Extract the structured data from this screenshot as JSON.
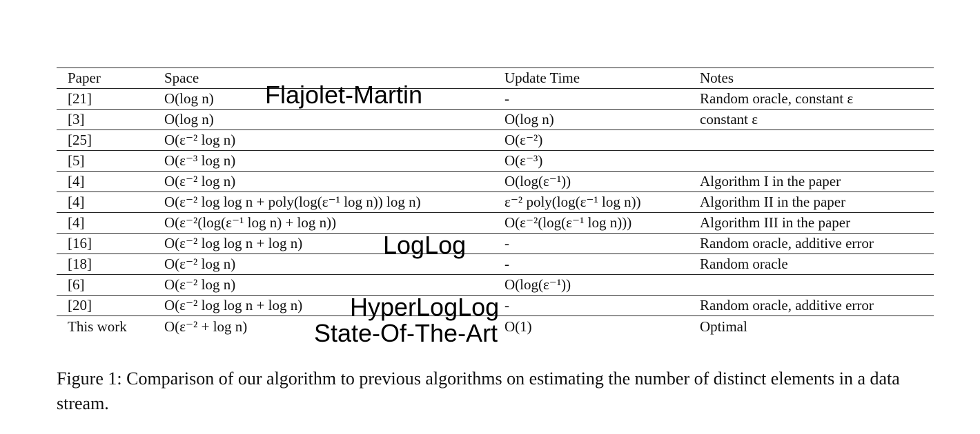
{
  "table": {
    "headers": [
      "Paper",
      "Space",
      "Update Time",
      "Notes"
    ],
    "rows": [
      {
        "paper": "[21]",
        "space": "O(log n)",
        "update": "-",
        "notes": "Random oracle, constant ε"
      },
      {
        "paper": "[3]",
        "space": "O(log n)",
        "update": "O(log n)",
        "notes": "constant ε"
      },
      {
        "paper": "[25]",
        "space": "O(ε⁻² log n)",
        "update": "O(ε⁻²)",
        "notes": ""
      },
      {
        "paper": "[5]",
        "space": "O(ε⁻³ log n)",
        "update": "O(ε⁻³)",
        "notes": ""
      },
      {
        "paper": "[4]",
        "space": "O(ε⁻² log n)",
        "update": "O(log(ε⁻¹))",
        "notes": "Algorithm I in the paper"
      },
      {
        "paper": "[4]",
        "space": "O(ε⁻² log log n + poly(log(ε⁻¹ log n)) log n)",
        "update": "ε⁻² poly(log(ε⁻¹ log n))",
        "notes": "Algorithm II in the paper"
      },
      {
        "paper": "[4]",
        "space": "O(ε⁻²(log(ε⁻¹ log n) + log n))",
        "update": "O(ε⁻²(log(ε⁻¹ log n)))",
        "notes": "Algorithm III in the paper"
      },
      {
        "paper": "[16]",
        "space": "O(ε⁻² log log n + log n)",
        "update": "-",
        "notes": "Random oracle, additive error"
      },
      {
        "paper": "[18]",
        "space": "O(ε⁻² log n)",
        "update": "-",
        "notes": "Random oracle"
      },
      {
        "paper": "[6]",
        "space": "O(ε⁻² log n)",
        "update": "O(log(ε⁻¹))",
        "notes": ""
      },
      {
        "paper": "[20]",
        "space": "O(ε⁻² log log n + log n)",
        "update": "-",
        "notes": "Random oracle, additive error"
      },
      {
        "paper": "This work",
        "space": "O(ε⁻² + log n)",
        "update": "O(1)",
        "notes": "Optimal"
      }
    ]
  },
  "overlays": {
    "flajolet_martin": "Flajolet-Martin",
    "loglog": "LogLog",
    "hyperloglog": "HyperLogLog",
    "state_of_the_art": "State-Of-The-Art"
  },
  "caption": "Figure 1: Comparison of our algorithm to previous algorithms on estimating the number of distinct elements in a data stream."
}
